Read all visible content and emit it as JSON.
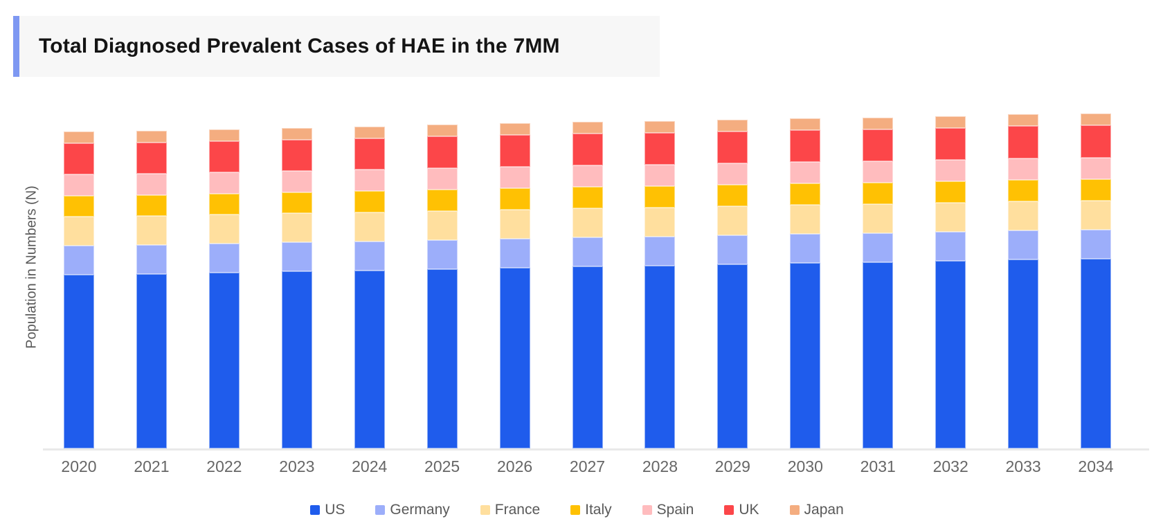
{
  "page": {
    "background": "#ffffff"
  },
  "title": {
    "text": "Total Diagnosed Prevalent Cases of HAE in the 7MM",
    "background": "#f7f7f7",
    "accent_color": "#7e98f2",
    "text_color": "#141414"
  },
  "chart_data": {
    "type": "bar",
    "stacked": true,
    "title": "Total Diagnosed Prevalent Cases of HAE in the 7MM",
    "xlabel": "",
    "ylabel": "Population in Numbers (N)",
    "y_axis_numeric_ticks_visible": false,
    "grid": false,
    "legend_position": "bottom",
    "axis_line_color": "#e9e9e9",
    "axis_text_color": "#666666",
    "legend_text_color": "#595959",
    "ylabel_color": "#595959",
    "values_unit": "relative height (no numeric y-axis shown in chart)",
    "ylim": [
      0,
      500
    ],
    "categories": [
      "2020",
      "2021",
      "2022",
      "2023",
      "2024",
      "2025",
      "2026",
      "2027",
      "2028",
      "2029",
      "2030",
      "2031",
      "2032",
      "2033",
      "2034"
    ],
    "series": [
      {
        "name": "US",
        "color": "#1f5cec",
        "values": [
          251,
          252,
          254,
          256,
          257,
          259,
          261,
          263,
          264,
          266,
          268,
          269,
          271,
          273,
          274
        ]
      },
      {
        "name": "Germany",
        "color": "#9caefa",
        "values": [
          42,
          42,
          42,
          42,
          42,
          42,
          42,
          42,
          42,
          42,
          42,
          42,
          42,
          42,
          42
        ]
      },
      {
        "name": "France",
        "color": "#ffdf9e",
        "values": [
          42,
          42,
          42,
          42,
          42,
          42,
          42,
          42,
          42,
          42,
          42,
          42,
          42,
          42,
          42
        ]
      },
      {
        "name": "Italy",
        "color": "#ffc103",
        "values": [
          30,
          30,
          30,
          30,
          31,
          31,
          31,
          31,
          31,
          31,
          31,
          31,
          31,
          31,
          31
        ]
      },
      {
        "name": "Spain",
        "color": "#ffbcbe",
        "values": [
          31,
          31,
          31,
          31,
          31,
          31,
          31,
          31,
          31,
          31,
          31,
          31,
          31,
          31,
          31
        ]
      },
      {
        "name": "UK",
        "color": "#fc4649",
        "values": [
          45,
          45,
          45,
          45,
          45,
          46,
          46,
          46,
          46,
          46,
          46,
          46,
          46,
          47,
          47
        ]
      },
      {
        "name": "Japan",
        "color": "#f4ad80",
        "values": [
          17,
          17,
          17,
          17,
          17,
          17,
          17,
          17,
          17,
          17,
          17,
          17,
          17,
          17,
          17
        ]
      }
    ]
  }
}
